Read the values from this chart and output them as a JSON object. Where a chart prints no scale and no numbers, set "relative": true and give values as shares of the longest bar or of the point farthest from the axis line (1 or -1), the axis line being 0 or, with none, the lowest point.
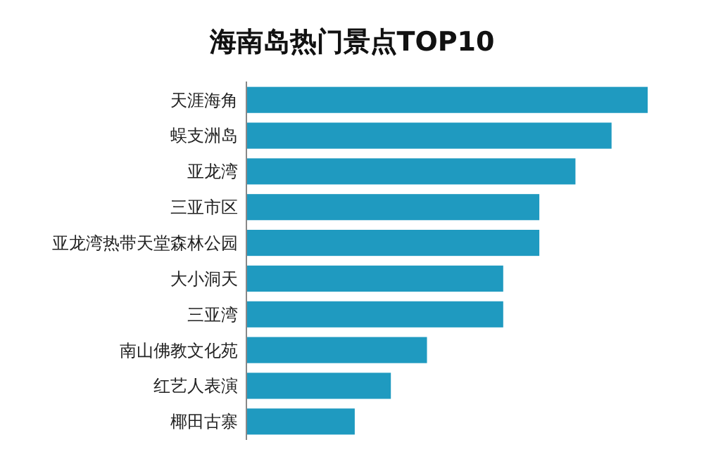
{
  "chart_data": {
    "type": "bar",
    "orientation": "horizontal",
    "relative": true,
    "title": "海南岛热门景点TOP10",
    "categories": [
      "天涯海角",
      "蜈支洲岛",
      "亚龙湾",
      "三亚市区",
      "亚龙湾热带天堂森林公园",
      "大小洞天",
      "三亚湾",
      "南山佛教文化苑",
      "红艺人表演",
      "椰田古寨"
    ],
    "values": [
      1,
      0.91,
      0.82,
      0.73,
      0.73,
      0.64,
      0.64,
      0.45,
      0.36,
      0.27
    ],
    "color": "#1f9ac0"
  }
}
